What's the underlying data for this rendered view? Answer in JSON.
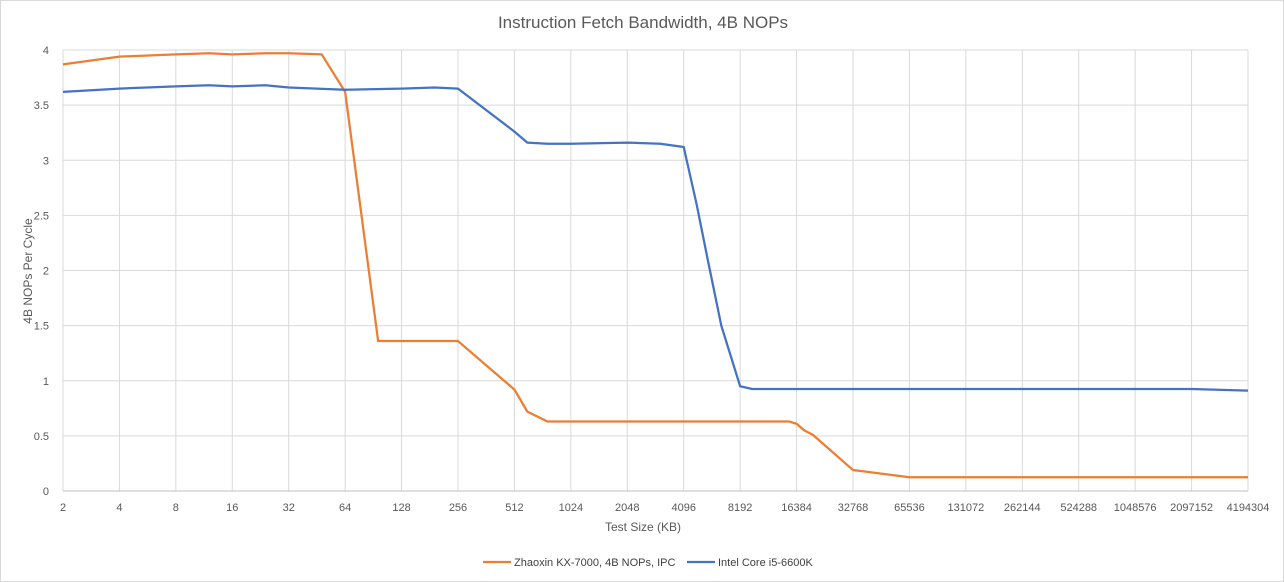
{
  "chart_data": {
    "type": "line",
    "title": "Instruction Fetch Bandwidth, 4B NOPs",
    "xlabel": "Test Size (KB)",
    "ylabel": "4B NOPs Per Cycle",
    "x_scale": "log2",
    "x_ticks": [
      "2",
      "4",
      "8",
      "16",
      "32",
      "64",
      "128",
      "256",
      "512",
      "1024",
      "2048",
      "4096",
      "8192",
      "16384",
      "32768",
      "65536",
      "131072",
      "262144",
      "524288",
      "1048576",
      "2097152",
      "4194304"
    ],
    "y_ticks": [
      "0",
      "0.5",
      "1",
      "1.5",
      "2",
      "2.5",
      "3",
      "3.5",
      "4"
    ],
    "ylim": [
      0,
      4
    ],
    "grid": true,
    "legend_position": "bottom",
    "series": [
      {
        "name": "Zhaoxin KX-7000, 4B NOPs, IPC",
        "color": "#ed7d31",
        "points": [
          [
            2,
            3.87
          ],
          [
            4,
            3.94
          ],
          [
            8,
            3.96
          ],
          [
            12,
            3.97
          ],
          [
            16,
            3.96
          ],
          [
            24,
            3.97
          ],
          [
            32,
            3.97
          ],
          [
            48,
            3.96
          ],
          [
            64,
            3.62
          ],
          [
            96,
            1.36
          ],
          [
            128,
            1.36
          ],
          [
            256,
            1.36
          ],
          [
            512,
            0.92
          ],
          [
            600,
            0.72
          ],
          [
            768,
            0.63
          ],
          [
            1024,
            0.63
          ],
          [
            2048,
            0.63
          ],
          [
            4096,
            0.63
          ],
          [
            8192,
            0.63
          ],
          [
            15000,
            0.63
          ],
          [
            16384,
            0.61
          ],
          [
            18000,
            0.55
          ],
          [
            20000,
            0.51
          ],
          [
            32768,
            0.19
          ],
          [
            65536,
            0.125
          ],
          [
            131072,
            0.125
          ],
          [
            262144,
            0.125
          ],
          [
            524288,
            0.125
          ],
          [
            1048576,
            0.125
          ],
          [
            2097152,
            0.125
          ],
          [
            4194304,
            0.125
          ]
        ]
      },
      {
        "name": "Intel Core i5-6600K",
        "color": "#4472c4",
        "points": [
          [
            2,
            3.62
          ],
          [
            4,
            3.65
          ],
          [
            8,
            3.67
          ],
          [
            12,
            3.68
          ],
          [
            16,
            3.67
          ],
          [
            24,
            3.68
          ],
          [
            32,
            3.66
          ],
          [
            64,
            3.64
          ],
          [
            128,
            3.65
          ],
          [
            192,
            3.66
          ],
          [
            256,
            3.65
          ],
          [
            512,
            3.26
          ],
          [
            600,
            3.16
          ],
          [
            768,
            3.15
          ],
          [
            1024,
            3.15
          ],
          [
            2048,
            3.16
          ],
          [
            3072,
            3.15
          ],
          [
            4096,
            3.12
          ],
          [
            4800,
            2.6
          ],
          [
            5500,
            2.1
          ],
          [
            6500,
            1.5
          ],
          [
            8192,
            0.95
          ],
          [
            9500,
            0.925
          ],
          [
            16384,
            0.925
          ],
          [
            32768,
            0.925
          ],
          [
            65536,
            0.925
          ],
          [
            131072,
            0.925
          ],
          [
            262144,
            0.925
          ],
          [
            524288,
            0.925
          ],
          [
            1048576,
            0.925
          ],
          [
            2097152,
            0.925
          ],
          [
            4194304,
            0.91
          ]
        ]
      }
    ]
  }
}
